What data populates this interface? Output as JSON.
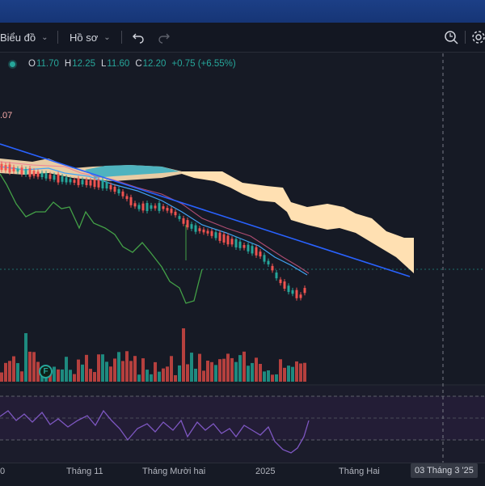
{
  "toolbar": {
    "chart_menu_label": "Biểu đồ",
    "profile_menu_label": "Hồ sơ"
  },
  "legend": {
    "open_key": "O",
    "open": "11.70",
    "high_key": "H",
    "high": "12.25",
    "low_key": "L",
    "low": "11.60",
    "close_key": "C",
    "close": "12.20",
    "change": "+0.75 (+6.55%)"
  },
  "price_tag_fragment": ".07",
  "volume_badge": "F",
  "time_axis": {
    "labels": [
      "0",
      "Tháng 11",
      "Tháng Mười hai",
      "2025",
      "Tháng Hai"
    ],
    "current_date": "03 Tháng 3 '25"
  },
  "colors": {
    "up": "#26a69a",
    "down": "#ef5350",
    "trendline": "#2962ff",
    "cloud": "#ffe0b2",
    "rsi_line": "#7e57c2",
    "lagging_span": "#43a047"
  }
}
